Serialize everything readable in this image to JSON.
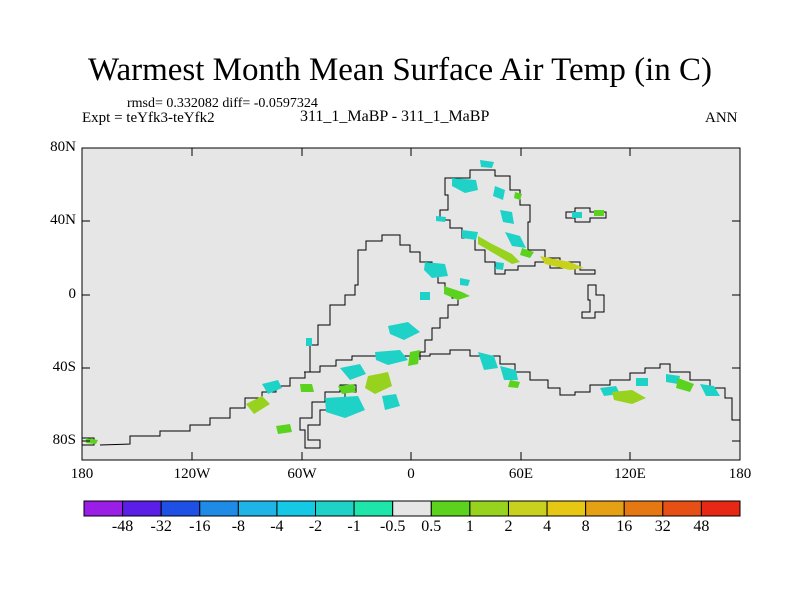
{
  "title": "Warmest Month Mean Surface Air Temp (in C)",
  "stats": "rmsd= 0.332082 diff= -0.0597324",
  "experiment": "Expt = teYfk3-teYfk2",
  "case_label": "311_1_MaBP - 311_1_MaBP",
  "period": "ANN",
  "lat_labels": [
    "80N",
    "40N",
    "0",
    "40S",
    "80S"
  ],
  "lon_labels": [
    "180",
    "120W",
    "60W",
    "0",
    "60E",
    "120E",
    "180"
  ],
  "colorbar": {
    "colors": [
      "#9A1EE6",
      "#5A1EE6",
      "#1E50E6",
      "#1E8CE6",
      "#1EB4E6",
      "#14C8E6",
      "#1ED2C8",
      "#1EE6AA",
      "#E6E6E6",
      "#5AD21E",
      "#96D21E",
      "#C8D21E",
      "#E6C814",
      "#E6A014",
      "#E67814",
      "#E65014",
      "#E62814"
    ],
    "labels": [
      "-48",
      "-32",
      "-16",
      "-8",
      "-4",
      "-2",
      "-1",
      "-0.5",
      "0.5",
      "1",
      "2",
      "4",
      "8",
      "16",
      "32",
      "48"
    ]
  },
  "colors": {
    "ocean": "#E6E6E6",
    "cyan": "#1ED2C8",
    "green": "#5AD21E",
    "yellowgreen": "#96D21E",
    "yellow": "#C8D21E",
    "blue": "#1E8CE6"
  }
}
